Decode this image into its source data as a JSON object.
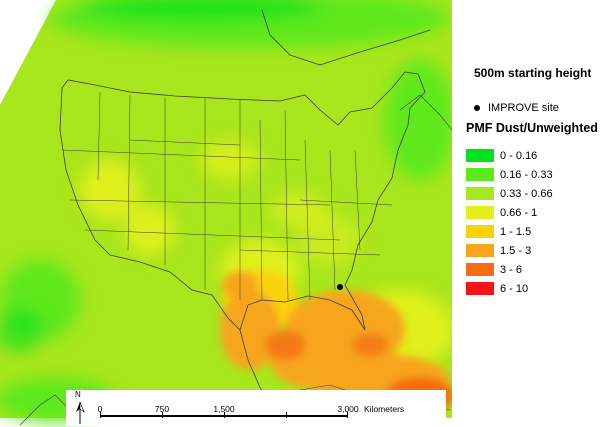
{
  "subtitle": "500m starting height",
  "site_marker": {
    "label": "IMPROVE site",
    "color": "#000000"
  },
  "legend": {
    "title": "PMF Dust/Unweighted",
    "items": [
      {
        "label": "0 - 0.16",
        "color": "#00e01e"
      },
      {
        "label": "0.16 - 0.33",
        "color": "#5fe81a"
      },
      {
        "label": "0.33 - 0.66",
        "color": "#a8e61d"
      },
      {
        "label": "0.66 - 1",
        "color": "#dff01a"
      },
      {
        "label": "1 - 1.5",
        "color": "#fbd20a"
      },
      {
        "label": "1.5 - 3",
        "color": "#f7a51b"
      },
      {
        "label": "3 - 6",
        "color": "#f46d10"
      },
      {
        "label": "6 - 10",
        "color": "#f41414"
      }
    ]
  },
  "scale_bar": {
    "north": "N",
    "ticks": [
      "0",
      "750",
      "1,500",
      "3,000"
    ],
    "unit": "Kilometers"
  },
  "colors": {
    "land_base": "#a8e61d",
    "boundary": "#3c3c3c"
  }
}
